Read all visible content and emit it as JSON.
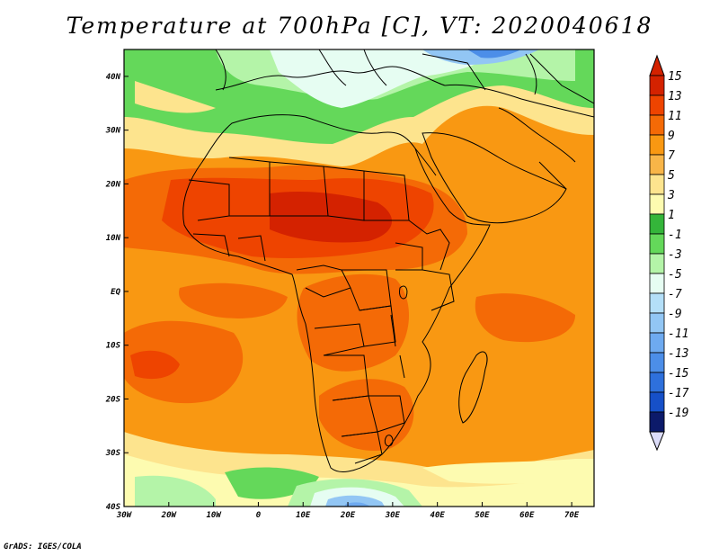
{
  "title": "Temperature at 700hPa [C], VT: 2020040618",
  "credit": "GrADS: IGES/COLA",
  "map": {
    "lon_range": [
      -30,
      75
    ],
    "lat_range": [
      -40,
      45
    ],
    "lon_ticks": [
      {
        "lon": -30,
        "label": "30W"
      },
      {
        "lon": -20,
        "label": "20W"
      },
      {
        "lon": -10,
        "label": "10W"
      },
      {
        "lon": 0,
        "label": "0"
      },
      {
        "lon": 10,
        "label": "10E"
      },
      {
        "lon": 20,
        "label": "20E"
      },
      {
        "lon": 30,
        "label": "30E"
      },
      {
        "lon": 40,
        "label": "40E"
      },
      {
        "lon": 50,
        "label": "50E"
      },
      {
        "lon": 60,
        "label": "60E"
      },
      {
        "lon": 70,
        "label": "70E"
      }
    ],
    "lat_ticks": [
      {
        "lat": 40,
        "label": "40N"
      },
      {
        "lat": 30,
        "label": "30N"
      },
      {
        "lat": 20,
        "label": "20N"
      },
      {
        "lat": 10,
        "label": "10N"
      },
      {
        "lat": 0,
        "label": "EQ"
      },
      {
        "lat": -10,
        "label": "10S"
      },
      {
        "lat": -20,
        "label": "20S"
      },
      {
        "lat": -30,
        "label": "30S"
      },
      {
        "lat": -40,
        "label": "40S"
      }
    ]
  },
  "colorbar": {
    "levels": [
      {
        "label": "15",
        "color": "#d42200"
      },
      {
        "label": "13",
        "color": "#ee4400"
      },
      {
        "label": "11",
        "color": "#f46a06"
      },
      {
        "label": "9",
        "color": "#f99812"
      },
      {
        "label": "7",
        "color": "#f8b548"
      },
      {
        "label": "5",
        "color": "#fde48e"
      },
      {
        "label": "3",
        "color": "#fdfbb0"
      },
      {
        "label": "1",
        "color": "#34b53a"
      },
      {
        "label": "-1",
        "color": "#64d85a"
      },
      {
        "label": "-3",
        "color": "#b4f4a8"
      },
      {
        "label": "-5",
        "color": "#e6fdf2"
      },
      {
        "label": "-7",
        "color": "#b4dff8"
      },
      {
        "label": "-9",
        "color": "#92c6f4"
      },
      {
        "label": "-11",
        "color": "#6eaaf0"
      },
      {
        "label": "-13",
        "color": "#4c8ee8"
      },
      {
        "label": "-15",
        "color": "#2e70dc"
      },
      {
        "label": "-17",
        "color": "#1650c8"
      },
      {
        "label": "-19",
        "color": "#0a2c9c"
      }
    ],
    "below_color": "#0c1a6a",
    "above_color": "#d42200",
    "end_below_color": "#dcdcf8"
  }
}
